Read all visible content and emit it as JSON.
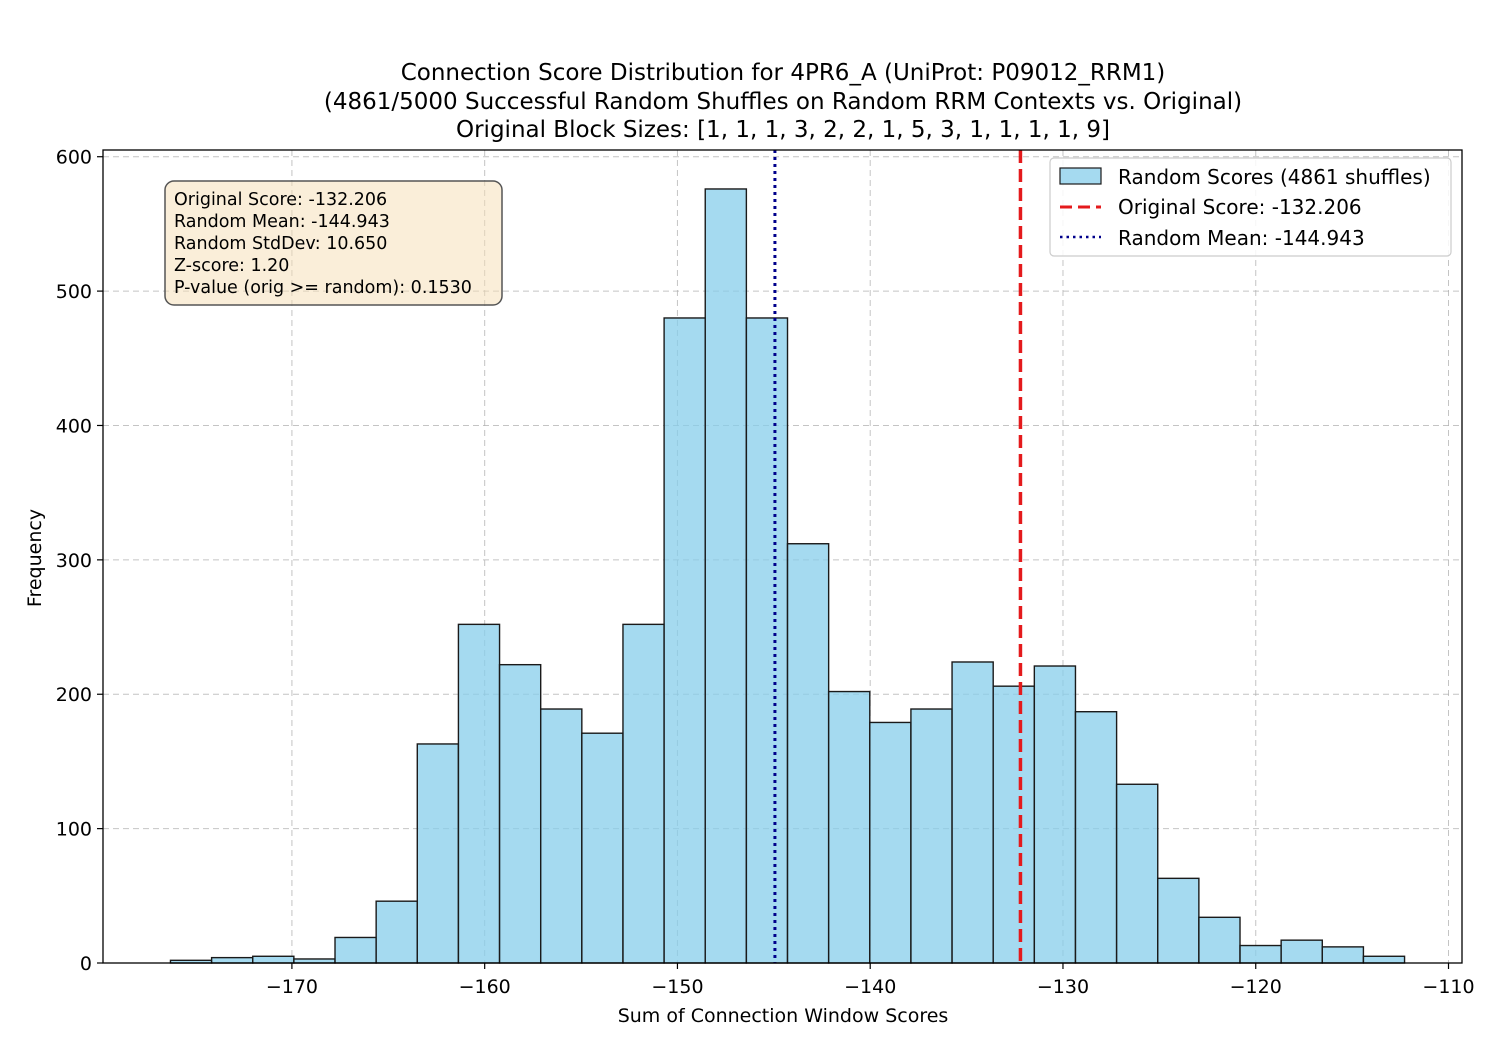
{
  "chart_data": {
    "type": "bar",
    "title_lines": [
      "Connection Score Distribution for 4PR6_A (UniProt: P09012_RRM1)",
      "(4861/5000 Successful Random Shuffles on Random RRM Contexts vs. Original)",
      "Original Block Sizes: [1, 1, 1, 3, 2, 2, 1, 5, 3, 1, 1, 1, 1, 9]"
    ],
    "xlabel": "Sum of Connection Window Scores",
    "ylabel": "Frequency",
    "xlim": [
      -179.8,
      -109.3
    ],
    "ylim": [
      0,
      605
    ],
    "xticks": [
      -170,
      -160,
      -150,
      -140,
      -130,
      -120,
      -110
    ],
    "xtick_labels": [
      "−170",
      "−160",
      "−150",
      "−140",
      "−130",
      "−120",
      "−110"
    ],
    "yticks": [
      0,
      100,
      200,
      300,
      400,
      500,
      600
    ],
    "ytick_labels": [
      "0",
      "100",
      "200",
      "300",
      "400",
      "500",
      "600"
    ],
    "grid": true,
    "legend_position": "top-right",
    "bin_start": -176.3,
    "bin_width": 2.134,
    "values": [
      2,
      4,
      5,
      3,
      19,
      46,
      163,
      252,
      222,
      189,
      171,
      252,
      480,
      576,
      480,
      312,
      202,
      179,
      189,
      224,
      206,
      221,
      187,
      133,
      63,
      34,
      13,
      17,
      12,
      5
    ],
    "series": [
      {
        "name": "Random Scores (4861 shuffles)",
        "kind": "histogram",
        "color": "#87CEEB",
        "edge_color": "#000000"
      }
    ],
    "reference_lines": [
      {
        "name": "Original Score: -132.206",
        "x": -132.206,
        "color": "#E41A1C",
        "style": "dashed"
      },
      {
        "name": "Random Mean: -144.943",
        "x": -144.943,
        "color": "#00008B",
        "style": "dotted"
      }
    ],
    "stats_box": [
      "Original Score: -132.206",
      "Random Mean: -144.943",
      "Random StdDev: 10.650",
      "Z-score: 1.20",
      "P-value (orig >= random): 0.1530"
    ],
    "colors": {
      "bar_fill": "#87CEEB",
      "bar_edge": "#1a1a1a",
      "original_line": "#E41A1C",
      "mean_line": "#00008B",
      "stats_box_fill": "#F5DEB3",
      "grid": "#b0b0b0"
    }
  }
}
